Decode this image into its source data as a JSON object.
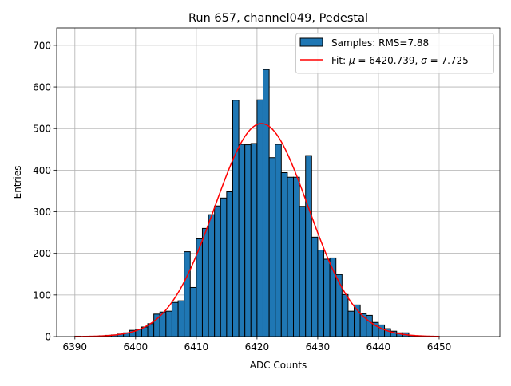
{
  "chart_data": {
    "type": "bar",
    "title": "Run 657, channel049, Pedestal",
    "xlabel": "ADC Counts",
    "ylabel": "Entries",
    "xlim": [
      6387,
      6460
    ],
    "ylim": [
      0,
      742
    ],
    "xticks": [
      6390,
      6400,
      6410,
      6420,
      6430,
      6440,
      6450
    ],
    "yticks": [
      0,
      100,
      200,
      300,
      400,
      500,
      600,
      700
    ],
    "grid": true,
    "legend_position": "top-right",
    "bin_width": 1,
    "bin_starts": [
      6390,
      6391,
      6392,
      6393,
      6394,
      6395,
      6396,
      6397,
      6398,
      6399,
      6400,
      6401,
      6402,
      6403,
      6404,
      6405,
      6406,
      6407,
      6408,
      6409,
      6410,
      6411,
      6412,
      6413,
      6414,
      6415,
      6416,
      6417,
      6418,
      6419,
      6420,
      6421,
      6422,
      6423,
      6424,
      6425,
      6426,
      6427,
      6428,
      6429,
      6430,
      6431,
      6432,
      6433,
      6434,
      6435,
      6436,
      6437,
      6438,
      6439,
      6440,
      6441,
      6442,
      6443,
      6444,
      6445,
      6446,
      6447,
      6448,
      6449
    ],
    "values": [
      1,
      0,
      1,
      1,
      2,
      3,
      4,
      6,
      9,
      15,
      18,
      23,
      31,
      54,
      59,
      61,
      82,
      86,
      204,
      118,
      235,
      260,
      293,
      314,
      333,
      348,
      568,
      462,
      461,
      464,
      569,
      642,
      430,
      462,
      394,
      383,
      383,
      313,
      435,
      239,
      208,
      186,
      189,
      149,
      101,
      61,
      76,
      55,
      51,
      34,
      28,
      19,
      13,
      9,
      9,
      3,
      2,
      1,
      1,
      1
    ],
    "series": [
      {
        "name": "Samples: RMS=7.88",
        "kind": "histogram",
        "color": "#1f77b4",
        "edge_color": "#000000"
      },
      {
        "name": "Fit: μ = 6420.739, σ = 7.725",
        "kind": "gaussian",
        "color": "#ff0000",
        "mu": 6420.739,
        "sigma": 7.725,
        "amplitude": 512,
        "x_range": [
          6390,
          6450
        ]
      }
    ],
    "legend": {
      "samples_prefix": "Samples: RMS=7.88",
      "fit_prefix": "Fit: ",
      "mu_symbol": "μ",
      "mu_text": " = 6420.739, ",
      "sigma_symbol": "σ",
      "sigma_text": " = 7.725"
    }
  }
}
